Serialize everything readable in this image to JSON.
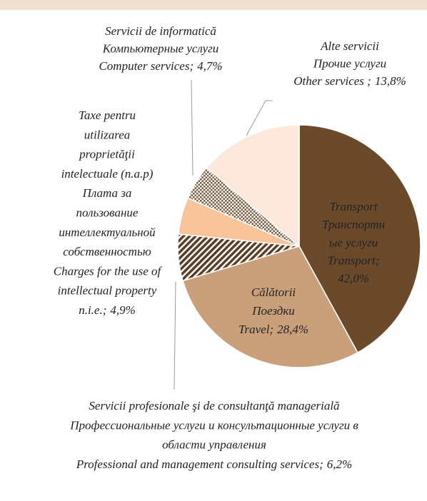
{
  "chart_data": {
    "type": "pie",
    "categories": [
      [
        "Transport",
        "Транспортн",
        "ые услуги",
        "Transport;"
      ],
      [
        "Călătorii",
        "Поездки",
        "Travel;"
      ],
      [
        "Servicii profesionale şi de consultanţă managerială",
        "Профессиональные услуги и консультационные услуги в",
        "области управления",
        "Professional and management consulting services;"
      ],
      [
        "Taxe pentru",
        "utilizarea",
        "proprietăţii",
        "intelectuale (n.a.p)",
        "Плата за",
        "пользование",
        "интеллектуальной",
        "собственностью",
        "Charges for the use of",
        "intellectual property",
        "n.i.e.;"
      ],
      [
        "Servicii de informatică",
        "Компьютерные услуги",
        "Computer services;"
      ],
      [
        "Alte servicii",
        "Прочие услуги",
        "Other services ;"
      ]
    ],
    "values": [
      42.0,
      28.4,
      6.2,
      4.9,
      4.7,
      13.8
    ],
    "value_labels": [
      "42,0%",
      "28,4%",
      "6,2%",
      "4,9%",
      "4,7%",
      "13,8%"
    ],
    "colors": [
      "#6b4a2b",
      "#c9a07a",
      "#5a3e25",
      "#f9c49a",
      "#7a5a3c",
      "#fce9dc"
    ],
    "patterns": [
      "solid",
      "solid",
      "hatch",
      "solid",
      "dots",
      "solid"
    ]
  }
}
